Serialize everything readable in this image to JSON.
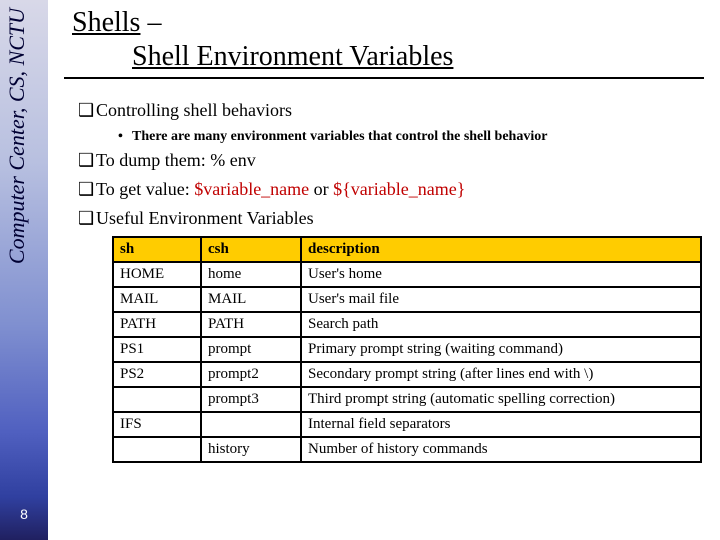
{
  "sidebar": {
    "label": "Computer Center, CS, NCTU",
    "page": "8"
  },
  "title": {
    "line1": "Shells",
    "dash": " – ",
    "line2": "Shell Environment Variables"
  },
  "bullets": {
    "b1": "Controlling shell behaviors",
    "b1sub": "There are many environment variables that control the shell behavior",
    "b2_pre": "To dump them: ",
    "b2_cmd": "% env",
    "b3_pre": "To get value: ",
    "b3_v1": "$variable_name",
    "b3_mid": " or ",
    "b3_v2": "${variable_name}",
    "b4": "Useful Environment Variables"
  },
  "table": {
    "headers": {
      "c1": "sh",
      "c2": "csh",
      "c3": "description"
    },
    "rows": [
      {
        "c1": "HOME",
        "c2": "home",
        "c3": "User's home"
      },
      {
        "c1": "MAIL",
        "c2": "MAIL",
        "c3": "User's mail file"
      },
      {
        "c1": "PATH",
        "c2": "PATH",
        "c3": "Search path"
      },
      {
        "c1": "PS1",
        "c2": "prompt",
        "c3": "Primary prompt string (waiting command)"
      },
      {
        "c1": "PS2",
        "c2": "prompt2",
        "c3": "Secondary prompt string (after lines end with \\)"
      },
      {
        "c1": "",
        "c2": "prompt3",
        "c3": "Third prompt string (automatic spelling correction)"
      },
      {
        "c1": "IFS",
        "c2": "",
        "c3": "Internal field separators"
      },
      {
        "c1": "",
        "c2": "history",
        "c3": "Number of history commands"
      }
    ]
  }
}
